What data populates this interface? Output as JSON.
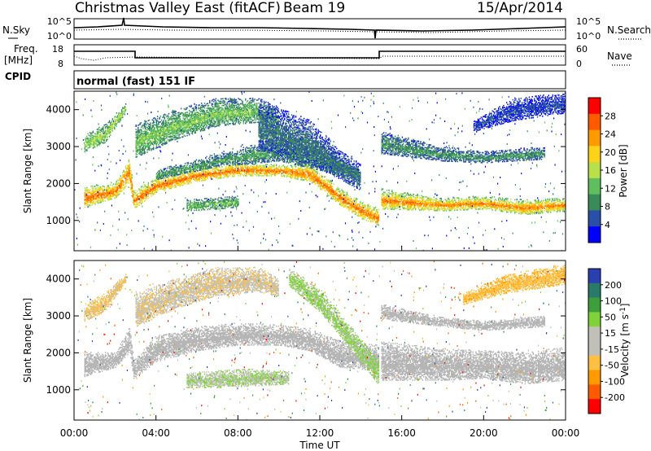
{
  "header": {
    "title": "Christmas Valley East (fitACF)",
    "beam": "Beam 19",
    "date": "15/Apr/2014"
  },
  "status_panels": {
    "nsky_label": "N.Sky",
    "nsearch_label": "N.Search",
    "noise_ticks_left": [
      "10^5",
      "10^0"
    ],
    "noise_ticks_right": [
      "10^5",
      "10^0"
    ],
    "freq_label": "Freq.",
    "freq_unit": "[MHz]",
    "freq_ticks": [
      "18",
      "8"
    ],
    "nave_label": "Nave",
    "nave_ticks": [
      "60",
      "0"
    ],
    "cpid_label": "CPID",
    "cpid_text": "normal (fast) 151 IF"
  },
  "colors": {
    "power_scale": [
      "#0000ff",
      "#2a4fa8",
      "#3a8a5a",
      "#5fbf5f",
      "#b8e04a",
      "#ffd21a",
      "#ff9a00",
      "#ff5a00",
      "#ff0000"
    ],
    "velocity_scale": [
      "#ff0000",
      "#ff5a00",
      "#ff9a00",
      "#ffbf40",
      "#c0c0b8",
      "#c0c0b8",
      "#7fd23a",
      "#3c9f3c",
      "#2a7a6a",
      "#2a3fb0"
    ],
    "ground_scatter": "#b4b4b4"
  },
  "chart_data": [
    {
      "type": "heatmap",
      "title": "Power",
      "xlabel": "",
      "ylabel": "Slant Range [km]",
      "x_ticks": [
        "00:00",
        "04:00",
        "08:00",
        "12:00",
        "16:00",
        "20:00",
        "00:00"
      ],
      "x_range_hours": [
        0,
        24
      ],
      "y_ticks": [
        "1000",
        "2000",
        "3000",
        "4000"
      ],
      "ylim": [
        180,
        4500
      ],
      "colorbar_label": "Power [dB]",
      "colorbar_ticks": [
        "4",
        "8",
        "12",
        "16",
        "20",
        "24",
        "28"
      ],
      "colorbar_range": [
        0,
        32
      ],
      "bands": [
        {
          "lower": [
            [
              0.5,
              1350
            ],
            [
              2,
              1600
            ],
            [
              2.7,
              2000
            ],
            [
              2.9,
              1300
            ],
            [
              4,
              1750
            ],
            [
              6,
              2050
            ],
            [
              8,
              2200
            ],
            [
              10,
              2200
            ],
            [
              11.5,
              2050
            ],
            [
              13,
              1400
            ],
            [
              14,
              1050
            ],
            [
              14.9,
              850
            ]
          ],
          "upper": [
            [
              0.5,
              1900
            ],
            [
              2,
              2000
            ],
            [
              2.7,
              2700
            ],
            [
              2.9,
              1800
            ],
            [
              4,
              2150
            ],
            [
              6,
              2400
            ],
            [
              8,
              2550
            ],
            [
              10,
              2500
            ],
            [
              11.5,
              2500
            ],
            [
              13,
              1850
            ],
            [
              14,
              1500
            ],
            [
              14.9,
              1300
            ]
          ],
          "core_db": 26,
          "edge_db": 14
        },
        {
          "lower": [
            [
              15,
              1300
            ],
            [
              18,
              1250
            ],
            [
              20,
              1300
            ],
            [
              22,
              1150
            ],
            [
              24,
              1250
            ]
          ],
          "upper": [
            [
              15,
              1850
            ],
            [
              18,
              1600
            ],
            [
              20,
              1650
            ],
            [
              22,
              1550
            ],
            [
              24,
              1600
            ]
          ],
          "core_db": 25,
          "edge_db": 12
        },
        {
          "lower": [
            [
              0.5,
              2850
            ],
            [
              1.5,
              3100
            ],
            [
              2.5,
              3900
            ]
          ],
          "upper": [
            [
              0.5,
              3300
            ],
            [
              1.5,
              3600
            ],
            [
              2.5,
              4150
            ]
          ],
          "core_db": 16,
          "edge_db": 9
        },
        {
          "lower": [
            [
              3,
              2700
            ],
            [
              5,
              3200
            ],
            [
              7,
              3550
            ],
            [
              9,
              3650
            ],
            [
              10,
              3500
            ]
          ],
          "upper": [
            [
              3,
              3600
            ],
            [
              5,
              4000
            ],
            [
              7,
              4300
            ],
            [
              9,
              4300
            ],
            [
              10,
              4000
            ]
          ],
          "core_db": 14,
          "edge_db": 7
        },
        {
          "lower": [
            [
              4,
              2100
            ],
            [
              7,
              2450
            ],
            [
              10,
              2600
            ],
            [
              12,
              2350
            ],
            [
              14,
              2100
            ]
          ],
          "upper": [
            [
              4,
              2350
            ],
            [
              7,
              2800
            ],
            [
              10,
              3200
            ],
            [
              12,
              2900
            ],
            [
              14,
              2350
            ]
          ],
          "core_db": 11,
          "edge_db": 6
        },
        {
          "lower": [
            [
              9,
              2900
            ],
            [
              11.5,
              2500
            ],
            [
              13,
              2100
            ],
            [
              14,
              1800
            ]
          ],
          "upper": [
            [
              9,
              4300
            ],
            [
              11.5,
              3700
            ],
            [
              13,
              2900
            ],
            [
              14,
              2500
            ]
          ],
          "core_db": 8,
          "edge_db": 4
        },
        {
          "lower": [
            [
              5.5,
              1250
            ],
            [
              7,
              1300
            ],
            [
              8,
              1350
            ]
          ],
          "upper": [
            [
              5.5,
              1550
            ],
            [
              7,
              1600
            ],
            [
              8,
              1650
            ]
          ],
          "core_db": 13,
          "edge_db": 8
        },
        {
          "lower": [
            [
              15,
              2800
            ],
            [
              18,
              2600
            ],
            [
              20,
              2550
            ],
            [
              23,
              2650
            ]
          ],
          "upper": [
            [
              15,
              3400
            ],
            [
              18,
              3000
            ],
            [
              20,
              2850
            ],
            [
              23,
              3000
            ]
          ],
          "core_db": 10,
          "edge_db": 5
        },
        {
          "lower": [
            [
              19.5,
              3400
            ],
            [
              21.5,
              3700
            ],
            [
              24,
              3900
            ]
          ],
          "upper": [
            [
              19.5,
              3700
            ],
            [
              21.5,
              4300
            ],
            [
              24,
              4450
            ]
          ],
          "core_db": 5,
          "edge_db": 3
        }
      ]
    },
    {
      "type": "heatmap",
      "title": "Velocity",
      "xlabel": "Time UT",
      "ylabel": "Slant Range [km]",
      "x_ticks": [
        "00:00",
        "04:00",
        "08:00",
        "12:00",
        "16:00",
        "20:00",
        "00:00"
      ],
      "x_range_hours": [
        0,
        24
      ],
      "y_ticks": [
        "1000",
        "2000",
        "3000",
        "4000"
      ],
      "ylim": [
        180,
        4500
      ],
      "colorbar_label": "Velocity [m s^-1]",
      "colorbar_ticks": [
        "200",
        "100",
        "50",
        "15",
        "-15",
        "-50",
        "-100",
        "-200"
      ],
      "colorbar_range": [
        -250,
        250
      ],
      "bands": [
        {
          "lower": [
            [
              0.5,
              1350
            ],
            [
              2,
              1600
            ],
            [
              2.7,
              2000
            ],
            [
              2.9,
              1300
            ],
            [
              4,
              1750
            ],
            [
              6,
              2050
            ],
            [
              8,
              2200
            ],
            [
              10,
              2200
            ],
            [
              11.5,
              2050
            ],
            [
              13,
              1600
            ],
            [
              14.9,
              1500
            ]
          ],
          "upper": [
            [
              0.5,
              2000
            ],
            [
              2,
              2000
            ],
            [
              2.7,
              2700
            ],
            [
              2.9,
              1800
            ],
            [
              4,
              2450
            ],
            [
              6,
              2700
            ],
            [
              8,
              2800
            ],
            [
              10,
              2750
            ],
            [
              11.5,
              2650
            ],
            [
              13,
              2300
            ],
            [
              14.9,
              2200
            ]
          ],
          "vel": 0,
          "ground": true
        },
        {
          "lower": [
            [
              15,
              1250
            ],
            [
              18,
              1250
            ],
            [
              20,
              1300
            ],
            [
              22,
              1150
            ],
            [
              24,
              1250
            ]
          ],
          "upper": [
            [
              15,
              2300
            ],
            [
              18,
              2100
            ],
            [
              20,
              2050
            ],
            [
              22,
              2000
            ],
            [
              24,
              2150
            ]
          ],
          "vel": 0,
          "ground": true
        },
        {
          "lower": [
            [
              15,
              2900
            ],
            [
              18,
              2700
            ],
            [
              20,
              2600
            ],
            [
              23,
              2700
            ]
          ],
          "upper": [
            [
              15,
              3300
            ],
            [
              18,
              2950
            ],
            [
              20,
              2850
            ],
            [
              23,
              3000
            ]
          ],
          "vel": 0,
          "ground": true
        },
        {
          "lower": [
            [
              0.5,
              2850
            ],
            [
              1.5,
              3100
            ],
            [
              2.5,
              3900
            ]
          ],
          "upper": [
            [
              0.5,
              3300
            ],
            [
              1.5,
              3600
            ],
            [
              2.5,
              4150
            ]
          ],
          "vel": -60,
          "ground": false
        },
        {
          "lower": [
            [
              3,
              2700
            ],
            [
              5,
              3200
            ],
            [
              7,
              3550
            ],
            [
              9,
              3650
            ],
            [
              10,
              3500
            ]
          ],
          "upper": [
            [
              3,
              3600
            ],
            [
              5,
              4000
            ],
            [
              7,
              4300
            ],
            [
              9,
              4300
            ],
            [
              10,
              4000
            ]
          ],
          "vel": -40,
          "ground": false
        },
        {
          "lower": [
            [
              10.5,
              3800
            ],
            [
              12,
              3100
            ],
            [
              13.5,
              2100
            ],
            [
              14.9,
              1100
            ]
          ],
          "upper": [
            [
              10.5,
              4300
            ],
            [
              12,
              3700
            ],
            [
              13.5,
              2700
            ],
            [
              14.9,
              1700
            ]
          ],
          "vel": 60,
          "ground": false
        },
        {
          "lower": [
            [
              5.5,
              1050
            ],
            [
              7,
              1050
            ],
            [
              9,
              1100
            ],
            [
              10.5,
              1150
            ]
          ],
          "upper": [
            [
              5.5,
              1450
            ],
            [
              7,
              1500
            ],
            [
              9,
              1550
            ],
            [
              10.5,
              1500
            ]
          ],
          "vel": 45,
          "ground": false
        },
        {
          "lower": [
            [
              19,
              3300
            ],
            [
              21,
              3600
            ],
            [
              24,
              3850
            ]
          ],
          "upper": [
            [
              19,
              3600
            ],
            [
              21,
              4100
            ],
            [
              24,
              4400
            ]
          ],
          "vel": -80,
          "ground": false
        }
      ]
    }
  ]
}
